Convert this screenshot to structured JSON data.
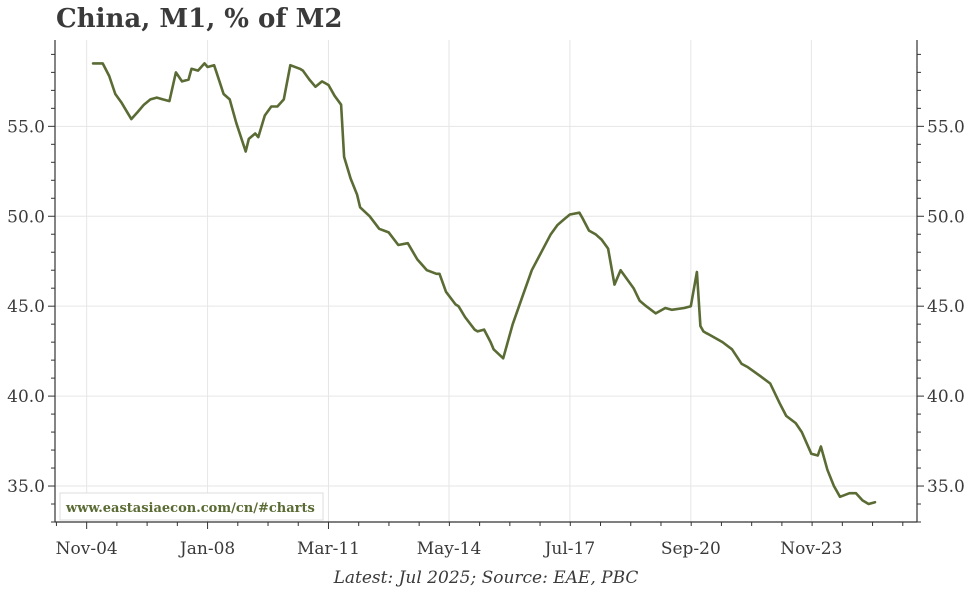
{
  "chart_data": {
    "type": "line",
    "title": "China, M1, % of M2",
    "xlabel": "",
    "ylabel": "",
    "source_note": "Latest: Jul 2025; Source: EAE, PBC",
    "watermark": "www.eastasiaecon.com/cn/#charts",
    "x_tick_labels": [
      "Nov-04",
      "Jan-08",
      "Mar-11",
      "May-14",
      "Jul-17",
      "Sep-20",
      "Nov-23"
    ],
    "x_tick_values": [
      2004.83,
      2008.0,
      2011.17,
      2014.33,
      2017.5,
      2020.67,
      2023.83
    ],
    "xlim": [
      2004.0,
      2026.6
    ],
    "ylim": [
      33.0,
      59.8
    ],
    "y_ticks": [
      35.0,
      40.0,
      45.0,
      50.0,
      55.0
    ],
    "y_tick_labels": [
      "35.0",
      "40.0",
      "45.0",
      "50.0",
      "55.0"
    ],
    "grid": true,
    "legend": "none",
    "colors": {
      "line": "#5a6b34",
      "grid": "#e6e6e6",
      "axis": "#333333",
      "watermark_border": "#dddddd"
    },
    "series": [
      {
        "values_note_x": "decimal year",
        "x": [
          2005.0,
          2005.25,
          2005.42,
          2005.58,
          2005.75,
          2006.0,
          2006.17,
          2006.33,
          2006.5,
          2006.67,
          2006.83,
          2007.0,
          2007.17,
          2007.33,
          2007.5,
          2007.58,
          2007.75,
          2007.92,
          2008.0,
          2008.17,
          2008.25,
          2008.42,
          2008.58,
          2008.75,
          2009.0,
          2009.08,
          2009.25,
          2009.33,
          2009.5,
          2009.67,
          2009.83,
          2010.0,
          2010.17,
          2010.42,
          2010.5,
          2010.67,
          2010.83,
          2011.0,
          2011.17,
          2011.33,
          2011.5,
          2011.58,
          2011.75,
          2011.92,
          2012.0,
          2012.25,
          2012.5,
          2012.75,
          2013.0,
          2013.25,
          2013.5,
          2013.75,
          2014.0,
          2014.08,
          2014.25,
          2014.5,
          2014.58,
          2014.75,
          2015.0,
          2015.08,
          2015.25,
          2015.42,
          2015.5,
          2015.75,
          2016.0,
          2016.25,
          2016.5,
          2016.75,
          2017.0,
          2017.17,
          2017.33,
          2017.5,
          2017.75,
          2017.83,
          2018.0,
          2018.17,
          2018.33,
          2018.5,
          2018.67,
          2018.83,
          2019.0,
          2019.17,
          2019.33,
          2019.5,
          2019.75,
          2020.0,
          2020.17,
          2020.5,
          2020.67,
          2020.83,
          2020.92,
          2021.0,
          2021.08,
          2021.17,
          2021.5,
          2021.75,
          2022.0,
          2022.17,
          2022.5,
          2022.75,
          2023.0,
          2023.17,
          2023.42,
          2023.58,
          2023.83,
          2024.0,
          2024.08,
          2024.25,
          2024.42,
          2024.58,
          2024.83,
          2025.0,
          2025.17,
          2025.33,
          2025.5
        ],
        "values": [
          58.5,
          58.5,
          57.8,
          56.8,
          56.3,
          55.4,
          55.8,
          56.2,
          56.5,
          56.6,
          56.5,
          56.4,
          58.0,
          57.5,
          57.6,
          58.2,
          58.1,
          58.5,
          58.3,
          58.4,
          57.9,
          56.8,
          56.5,
          55.2,
          53.6,
          54.3,
          54.6,
          54.4,
          55.6,
          56.1,
          56.1,
          56.5,
          58.4,
          58.2,
          58.1,
          57.6,
          57.2,
          57.5,
          57.3,
          56.7,
          56.2,
          53.3,
          52.1,
          51.2,
          50.5,
          50.0,
          49.3,
          49.1,
          48.4,
          48.5,
          47.6,
          47.0,
          46.8,
          46.8,
          45.8,
          45.1,
          45.0,
          44.4,
          43.7,
          43.6,
          43.7,
          43.0,
          42.6,
          42.1,
          44.0,
          45.5,
          47.0,
          48.0,
          49.0,
          49.5,
          49.8,
          50.1,
          50.2,
          49.9,
          49.2,
          49.0,
          48.7,
          48.2,
          46.2,
          47.0,
          46.5,
          46.0,
          45.3,
          45.0,
          44.6,
          44.9,
          44.8,
          44.9,
          45.0,
          46.9,
          43.9,
          43.6,
          43.5,
          43.4,
          43.0,
          42.6,
          41.8,
          41.6,
          41.1,
          40.7,
          39.6,
          38.9,
          38.5,
          38.0,
          36.8,
          36.7,
          37.2,
          35.9,
          35.0,
          34.4,
          34.6,
          34.6,
          34.2,
          34.0,
          34.1
        ]
      }
    ]
  }
}
